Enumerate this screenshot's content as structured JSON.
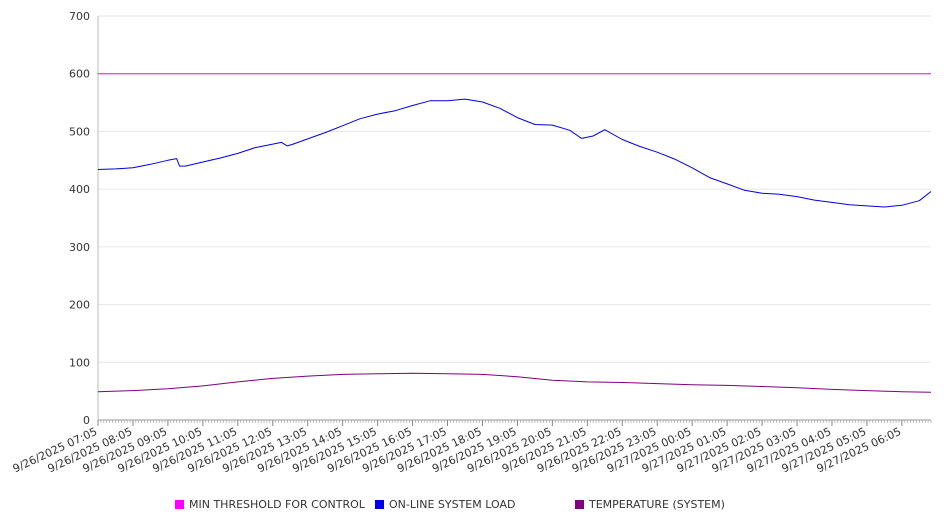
{
  "chart_data": {
    "type": "line",
    "title": "",
    "xlabel": "",
    "ylabel": "",
    "ylim": [
      0,
      700
    ],
    "yticks": [
      0,
      100,
      200,
      300,
      400,
      500,
      600,
      700
    ],
    "grid": "horizontal",
    "legend_position": "bottom",
    "x_tick_labels": [
      "9/26/2025 07:05",
      "9/26/2025 08:05",
      "9/26/2025 09:05",
      "9/26/2025 10:05",
      "9/26/2025 11:05",
      "9/26/2025 12:05",
      "9/26/2025 13:05",
      "9/26/2025 14:05",
      "9/26/2025 15:05",
      "9/26/2025 16:05",
      "9/26/2025 17:05",
      "9/26/2025 18:05",
      "9/26/2025 19:05",
      "9/26/2025 20:05",
      "9/26/2025 21:05",
      "9/26/2025 22:05",
      "9/26/2025 23:05",
      "9/27/2025 00:05",
      "9/27/2025 01:05",
      "9/27/2025 02:05",
      "9/27/2025 03:05",
      "9/27/2025 04:05",
      "9/27/2025 05:05",
      "9/27/2025 06:05"
    ],
    "x_end": "9/27/2025 06:55",
    "series": [
      {
        "name": "MIN THRESHOLD FOR CONTROL",
        "color": "#ff00ff",
        "points": [
          [
            "9/26/2025 07:05",
            600
          ],
          [
            "9/27/2025 06:55",
            600
          ]
        ]
      },
      {
        "name": "ON-LINE SYSTEM LOAD",
        "color": "#0000ee",
        "points": [
          [
            "9/26/2025 07:05",
            434
          ],
          [
            "9/26/2025 07:35",
            435
          ],
          [
            "9/26/2025 08:05",
            437
          ],
          [
            "9/26/2025 08:35",
            443
          ],
          [
            "9/26/2025 09:05",
            450
          ],
          [
            "9/26/2025 09:20",
            453
          ],
          [
            "9/26/2025 09:25",
            440
          ],
          [
            "9/26/2025 09:35",
            440
          ],
          [
            "9/26/2025 10:05",
            447
          ],
          [
            "9/26/2025 10:35",
            454
          ],
          [
            "9/26/2025 11:05",
            462
          ],
          [
            "9/26/2025 11:35",
            472
          ],
          [
            "9/26/2025 12:05",
            478
          ],
          [
            "9/26/2025 12:20",
            481
          ],
          [
            "9/26/2025 12:30",
            475
          ],
          [
            "9/26/2025 12:40",
            478
          ],
          [
            "9/26/2025 13:05",
            487
          ],
          [
            "9/26/2025 13:35",
            498
          ],
          [
            "9/26/2025 14:05",
            510
          ],
          [
            "9/26/2025 14:35",
            522
          ],
          [
            "9/26/2025 15:05",
            530
          ],
          [
            "9/26/2025 15:35",
            536
          ],
          [
            "9/26/2025 16:05",
            545
          ],
          [
            "9/26/2025 16:35",
            553
          ],
          [
            "9/26/2025 17:05",
            553
          ],
          [
            "9/26/2025 17:35",
            556
          ],
          [
            "9/26/2025 18:05",
            551
          ],
          [
            "9/26/2025 18:35",
            540
          ],
          [
            "9/26/2025 19:05",
            524
          ],
          [
            "9/26/2025 19:35",
            512
          ],
          [
            "9/26/2025 20:05",
            511
          ],
          [
            "9/26/2025 20:35",
            502
          ],
          [
            "9/26/2025 20:55",
            488
          ],
          [
            "9/26/2025 21:15",
            492
          ],
          [
            "9/26/2025 21:35",
            503
          ],
          [
            "9/26/2025 22:05",
            486
          ],
          [
            "9/26/2025 22:35",
            474
          ],
          [
            "9/26/2025 23:05",
            464
          ],
          [
            "9/26/2025 23:35",
            452
          ],
          [
            "9/27/2025 00:05",
            437
          ],
          [
            "9/27/2025 00:35",
            420
          ],
          [
            "9/27/2025 01:05",
            409
          ],
          [
            "9/27/2025 01:35",
            398
          ],
          [
            "9/27/2025 02:05",
            393
          ],
          [
            "9/27/2025 02:35",
            391
          ],
          [
            "9/27/2025 03:05",
            387
          ],
          [
            "9/27/2025 03:35",
            381
          ],
          [
            "9/27/2025 04:05",
            377
          ],
          [
            "9/27/2025 04:35",
            373
          ],
          [
            "9/27/2025 05:05",
            371
          ],
          [
            "9/27/2025 05:35",
            369
          ],
          [
            "9/27/2025 06:05",
            372
          ],
          [
            "9/27/2025 06:35",
            380
          ],
          [
            "9/27/2025 06:55",
            396
          ]
        ]
      },
      {
        "name": "TEMPERATURE (SYSTEM)",
        "color": "#800080",
        "points": [
          [
            "9/26/2025 07:05",
            49
          ],
          [
            "9/26/2025 08:05",
            51
          ],
          [
            "9/26/2025 09:05",
            54
          ],
          [
            "9/26/2025 10:05",
            59
          ],
          [
            "9/26/2025 11:05",
            66
          ],
          [
            "9/26/2025 12:05",
            72
          ],
          [
            "9/26/2025 13:05",
            76
          ],
          [
            "9/26/2025 14:05",
            79
          ],
          [
            "9/26/2025 15:05",
            80
          ],
          [
            "9/26/2025 16:05",
            81
          ],
          [
            "9/26/2025 17:05",
            80
          ],
          [
            "9/26/2025 18:05",
            79
          ],
          [
            "9/26/2025 19:05",
            75
          ],
          [
            "9/26/2025 20:05",
            69
          ],
          [
            "9/26/2025 21:05",
            66
          ],
          [
            "9/26/2025 22:05",
            65
          ],
          [
            "9/26/2025 23:05",
            63
          ],
          [
            "9/27/2025 00:05",
            61
          ],
          [
            "9/27/2025 01:05",
            60
          ],
          [
            "9/27/2025 02:05",
            58
          ],
          [
            "9/27/2025 03:05",
            56
          ],
          [
            "9/27/2025 04:05",
            53
          ],
          [
            "9/27/2025 05:05",
            51
          ],
          [
            "9/27/2025 06:05",
            49
          ],
          [
            "9/27/2025 06:55",
            48
          ]
        ]
      }
    ]
  },
  "legend": [
    {
      "label": "MIN THRESHOLD FOR CONTROL",
      "color": "#ff00ff"
    },
    {
      "label": "ON-LINE SYSTEM LOAD",
      "color": "#0000ee"
    },
    {
      "label": "TEMPERATURE (SYSTEM)",
      "color": "#800080"
    }
  ]
}
